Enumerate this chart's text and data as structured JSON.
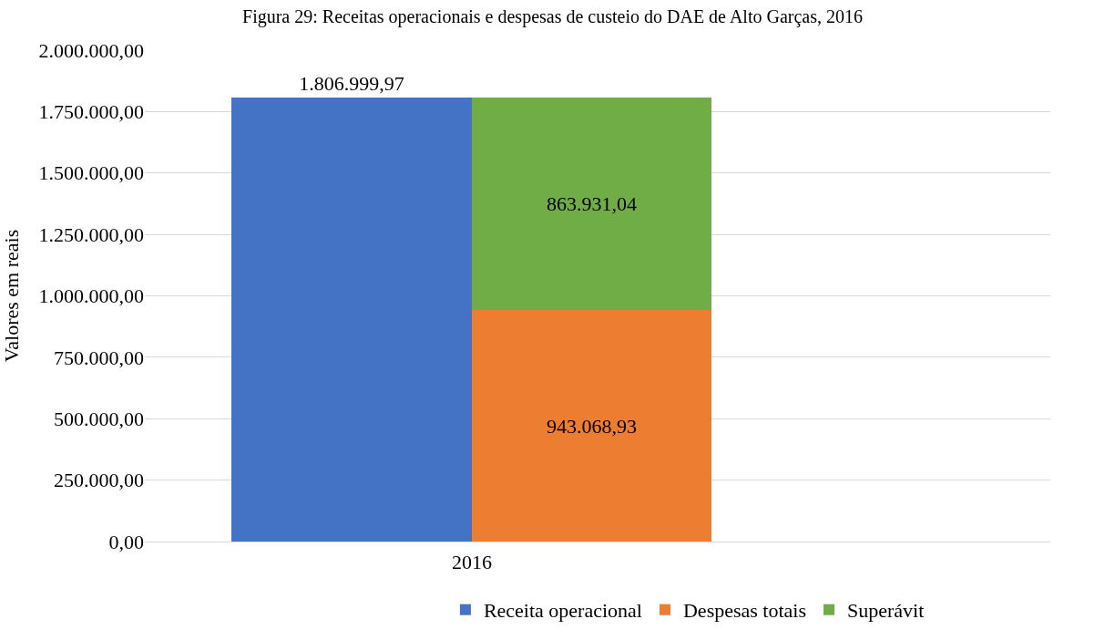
{
  "chart_data": {
    "type": "bar",
    "title": "Figura 29: Receitas operacionais e despesas de custeio do DAE de Alto Garças, 2016",
    "ylabel": "Valores em reais",
    "categories": [
      null,
      null
    ],
    "stacked": true,
    "annotations": [
      "2016"
    ],
    "series": [
      {
        "name": "Receita operacional",
        "color": "#4472c4",
        "values": [
          1806999.97,
          null
        ],
        "value_labels": [
          "1.806.999,97",
          null
        ]
      },
      {
        "name": "Despesas totais",
        "color": "#ed7d31",
        "values": [
          null,
          943068.93
        ],
        "value_labels": [
          null,
          "943.068,93"
        ]
      },
      {
        "name": "Superávit",
        "color": "#70ad47",
        "values": [
          null,
          863931.04
        ],
        "value_labels": [
          null,
          "863.931,04"
        ]
      }
    ],
    "ylim": [
      0,
      2000000
    ],
    "yticks": [
      {
        "value": 0,
        "label": "0,00"
      },
      {
        "value": 250000,
        "label": "250.000,00"
      },
      {
        "value": 500000,
        "label": "500.000,00"
      },
      {
        "value": 750000,
        "label": "750.000,00"
      },
      {
        "value": 1000000,
        "label": "1.000.000,00"
      },
      {
        "value": 1250000,
        "label": "1.250.000,00"
      },
      {
        "value": 1500000,
        "label": "1.500.000,00"
      },
      {
        "value": 1750000,
        "label": "1.750.000,00"
      },
      {
        "value": 2000000,
        "label": "2.000.000,00"
      }
    ],
    "grid": "y",
    "legend": "bottom"
  }
}
